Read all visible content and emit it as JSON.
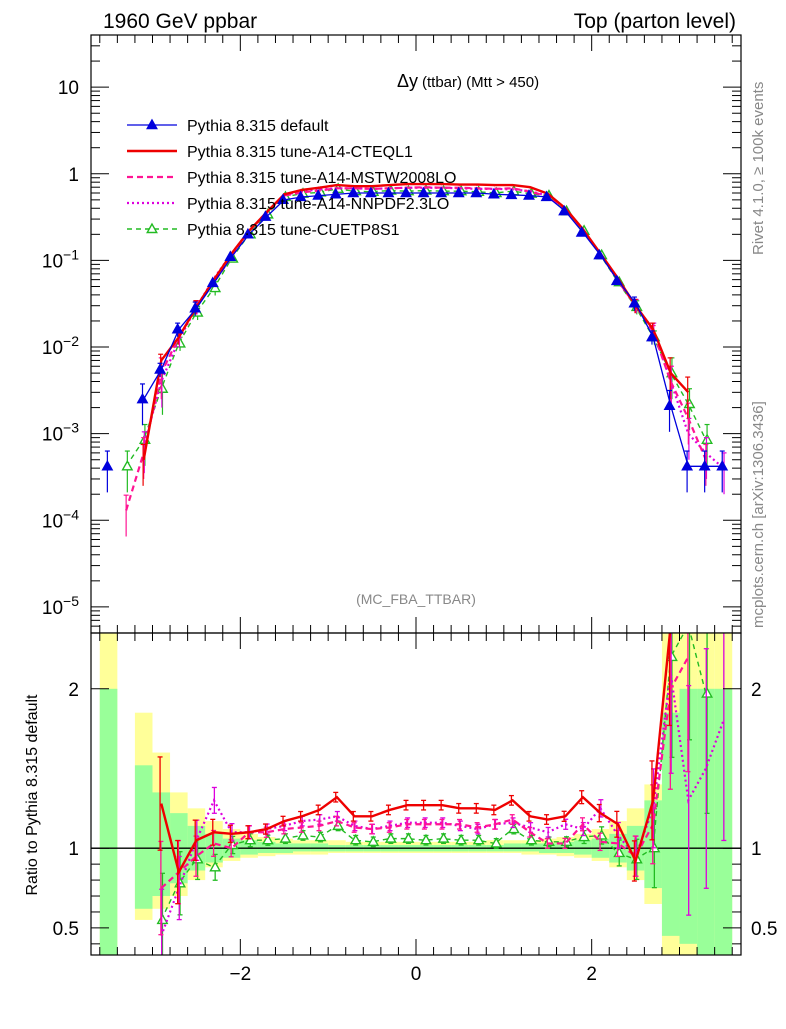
{
  "header": {
    "left": "1960 GeV ppbar",
    "right": "Top (parton level)"
  },
  "side": {
    "rivet": "Rivet 4.1.0, ≥ 100k events",
    "mcplots": "mcplots.cern.ch [arXiv:1306.3436]"
  },
  "plot": {
    "title_main": "Δy",
    "title_sub": "(ttbar) (Mtt > 450)",
    "analysis_label": "(MC_FBA_TTBAR)",
    "ratio_ylabel": "Ratio to Pythia 8.315 default"
  },
  "colors": {
    "default": "#0000dd",
    "cteql1": "#ee0000",
    "mstw": "#ff1493",
    "nnpdf": "#dd00dd",
    "cuetp8s1": "#22bb22",
    "band_yellow": "#ffff99",
    "band_green": "#99ff99"
  },
  "chart_data": [
    {
      "type": "line",
      "panel": "main",
      "xlabel": "Δy",
      "xlim": [
        -3.7,
        3.7
      ],
      "ylim": [
        5e-06,
        40
      ],
      "yscale": "log",
      "y_tick_labels": [
        "10⁻⁵",
        "10⁻⁴",
        "10⁻³",
        "10⁻²",
        "10⁻¹",
        "1",
        "10"
      ],
      "legend": [
        "Pythia 8.315 default",
        "Pythia 8.315 tune-A14-CTEQL1",
        "Pythia 8.315 tune-A14-MSTW2008LO",
        "Pythia 8.315 tune-A14-NNPDF2.3LO",
        "Pythia 8.315 tune-CUETP8S1"
      ],
      "legend_position": "top-left",
      "x": [
        -3.5,
        -3.3,
        -3.1,
        -2.9,
        -2.7,
        -2.5,
        -2.3,
        -2.1,
        -1.9,
        -1.7,
        -1.5,
        -1.3,
        -1.1,
        -0.9,
        -0.7,
        -0.5,
        -0.3,
        -0.1,
        0.1,
        0.3,
        0.5,
        0.7,
        0.9,
        1.1,
        1.3,
        1.5,
        1.7,
        1.9,
        2.1,
        2.3,
        2.5,
        2.7,
        2.9,
        3.1,
        3.3,
        3.5
      ],
      "series": [
        {
          "name": "Pythia 8.315 default",
          "marker": "filled-triangle",
          "values": [
            0.00042,
            null,
            0.0025,
            0.0055,
            0.016,
            0.028,
            0.055,
            0.11,
            0.2,
            0.32,
            0.5,
            0.54,
            0.56,
            0.58,
            0.6,
            0.6,
            0.6,
            0.6,
            0.6,
            0.6,
            0.6,
            0.6,
            0.58,
            0.57,
            0.56,
            0.54,
            0.37,
            0.21,
            0.115,
            0.058,
            0.032,
            0.013,
            0.0021,
            0.00042,
            0.00042,
            0.00042
          ]
        },
        {
          "name": "Pythia 8.315 tune-A14-CTEQL1",
          "marker": "none",
          "values": [
            null,
            null,
            0.0005,
            0.007,
            0.013,
            0.029,
            0.06,
            0.12,
            0.22,
            0.36,
            0.58,
            0.65,
            0.69,
            0.74,
            0.72,
            0.72,
            0.74,
            0.76,
            0.76,
            0.76,
            0.75,
            0.75,
            0.74,
            0.74,
            0.7,
            0.59,
            0.4,
            0.23,
            0.12,
            0.062,
            0.03,
            0.016,
            0.005,
            0.003,
            null,
            null
          ]
        },
        {
          "name": "Pythia 8.315 tune-A14-MSTW2008LO",
          "marker": "none",
          "values": [
            null,
            0.00013,
            0.0006,
            0.005,
            0.013,
            0.029,
            0.056,
            0.11,
            0.22,
            0.35,
            0.56,
            0.61,
            0.64,
            0.68,
            0.68,
            0.67,
            0.68,
            0.69,
            0.7,
            0.69,
            0.69,
            0.68,
            0.67,
            0.68,
            0.62,
            0.55,
            0.38,
            0.22,
            0.12,
            0.058,
            0.03,
            0.015,
            0.004,
            0.0015,
            0.0005,
            null
          ]
        },
        {
          "name": "Pythia 8.315 tune-A14-NNPDF2.3LO",
          "marker": "none",
          "values": [
            null,
            null,
            0.0007,
            0.004,
            0.012,
            0.029,
            0.062,
            0.12,
            0.22,
            0.36,
            0.57,
            0.63,
            0.66,
            0.68,
            0.68,
            0.67,
            0.68,
            0.69,
            0.69,
            0.69,
            0.68,
            0.67,
            0.67,
            0.66,
            0.63,
            0.56,
            0.4,
            0.22,
            0.12,
            0.058,
            0.03,
            0.016,
            0.004,
            0.001,
            0.0006,
            0.0004
          ]
        },
        {
          "name": "Pythia 8.315 tune-CUETP8S1",
          "marker": "open-triangle",
          "values": [
            null,
            0.00042,
            0.00085,
            0.0033,
            0.011,
            0.025,
            0.048,
            0.105,
            0.2,
            0.34,
            0.54,
            0.59,
            0.61,
            0.67,
            0.63,
            0.62,
            0.64,
            0.63,
            0.64,
            0.63,
            0.63,
            0.62,
            0.6,
            0.63,
            0.59,
            0.56,
            0.37,
            0.22,
            0.115,
            0.056,
            0.029,
            0.013,
            0.005,
            0.0022,
            0.00085,
            null
          ]
        }
      ]
    },
    {
      "type": "line",
      "panel": "ratio",
      "xlabel": "Δy",
      "ylabel": "Ratio to Pythia 8.315 default",
      "xlim": [
        -3.7,
        3.7
      ],
      "ylim": [
        0.33,
        2.35
      ],
      "x_ticks": [
        -2,
        0,
        2
      ],
      "x_tick_labels": [
        "−2",
        "0",
        "2"
      ],
      "y_ticks": [
        0.5,
        1,
        2
      ],
      "y_tick_labels": [
        "0.5",
        "1",
        "2"
      ],
      "x": [
        -3.5,
        -3.3,
        -3.1,
        -2.9,
        -2.7,
        -2.5,
        -2.3,
        -2.1,
        -1.9,
        -1.7,
        -1.5,
        -1.3,
        -1.1,
        -0.9,
        -0.7,
        -0.5,
        -0.3,
        -0.1,
        0.1,
        0.3,
        0.5,
        0.7,
        0.9,
        1.1,
        1.3,
        1.5,
        1.7,
        1.9,
        2.1,
        2.3,
        2.5,
        2.7,
        2.9,
        3.1,
        3.3,
        3.5
      ],
      "band_yellow": [
        [
          0.33,
          2.35
        ],
        [
          0.33,
          0.33
        ],
        [
          0.55,
          1.85
        ],
        [
          0.62,
          1.6
        ],
        [
          0.7,
          1.35
        ],
        [
          0.8,
          1.25
        ],
        [
          0.88,
          1.17
        ],
        [
          0.92,
          1.12
        ],
        [
          0.94,
          1.09
        ],
        [
          0.95,
          1.07
        ],
        [
          0.96,
          1.06
        ],
        [
          0.96,
          1.05
        ],
        [
          0.96,
          1.05
        ],
        [
          0.97,
          1.05
        ],
        [
          0.97,
          1.04
        ],
        [
          0.97,
          1.04
        ],
        [
          0.97,
          1.04
        ],
        [
          0.97,
          1.04
        ],
        [
          0.97,
          1.04
        ],
        [
          0.97,
          1.04
        ],
        [
          0.97,
          1.04
        ],
        [
          0.97,
          1.04
        ],
        [
          0.97,
          1.05
        ],
        [
          0.97,
          1.05
        ],
        [
          0.96,
          1.05
        ],
        [
          0.96,
          1.06
        ],
        [
          0.95,
          1.07
        ],
        [
          0.94,
          1.09
        ],
        [
          0.92,
          1.12
        ],
        [
          0.88,
          1.17
        ],
        [
          0.8,
          1.25
        ],
        [
          0.65,
          1.4
        ],
        [
          0.33,
          2.35
        ],
        [
          0.33,
          2.35
        ],
        [
          0.33,
          2.35
        ],
        [
          0.33,
          2.35
        ]
      ],
      "band_green": [
        [
          0.33,
          2.0
        ],
        [
          0.33,
          0.33
        ],
        [
          0.62,
          1.52
        ],
        [
          0.7,
          1.35
        ],
        [
          0.78,
          1.22
        ],
        [
          0.86,
          1.14
        ],
        [
          0.91,
          1.09
        ],
        [
          0.94,
          1.06
        ],
        [
          0.96,
          1.05
        ],
        [
          0.97,
          1.04
        ],
        [
          0.97,
          1.03
        ],
        [
          0.98,
          1.03
        ],
        [
          0.98,
          1.03
        ],
        [
          0.98,
          1.02
        ],
        [
          0.98,
          1.02
        ],
        [
          0.98,
          1.02
        ],
        [
          0.98,
          1.02
        ],
        [
          0.98,
          1.02
        ],
        [
          0.98,
          1.02
        ],
        [
          0.98,
          1.02
        ],
        [
          0.98,
          1.02
        ],
        [
          0.98,
          1.02
        ],
        [
          0.98,
          1.02
        ],
        [
          0.98,
          1.03
        ],
        [
          0.98,
          1.03
        ],
        [
          0.97,
          1.03
        ],
        [
          0.97,
          1.04
        ],
        [
          0.96,
          1.05
        ],
        [
          0.94,
          1.06
        ],
        [
          0.91,
          1.09
        ],
        [
          0.86,
          1.14
        ],
        [
          0.75,
          1.3
        ],
        [
          0.45,
          1.85
        ],
        [
          0.4,
          2.0
        ],
        [
          0.33,
          2.0
        ],
        [
          0.33,
          2.0
        ]
      ],
      "series": [
        {
          "name": "Pythia 8.315 tune-A14-CTEQL1",
          "values": [
            null,
            null,
            null,
            1.28,
            0.85,
            1.05,
            1.1,
            1.09,
            1.1,
            1.12,
            1.17,
            1.2,
            1.24,
            1.32,
            1.2,
            1.2,
            1.24,
            1.27,
            1.27,
            1.27,
            1.25,
            1.25,
            1.24,
            1.3,
            1.2,
            1.18,
            1.2,
            1.32,
            1.22,
            1.15,
            0.92,
            1.3,
            2.4,
            null,
            null,
            null
          ]
        },
        {
          "name": "Pythia 8.315 tune-A14-MSTW2008LO",
          "values": [
            null,
            null,
            null,
            0.75,
            0.85,
            0.95,
            1.03,
            1.0,
            1.1,
            1.1,
            1.12,
            1.13,
            1.14,
            1.17,
            1.13,
            1.12,
            1.13,
            1.15,
            1.15,
            1.15,
            1.15,
            1.13,
            1.15,
            1.18,
            1.1,
            1.03,
            1.03,
            1.15,
            1.04,
            1.03,
            0.95,
            1.15,
            2.0,
            2.2,
            null,
            null
          ]
        },
        {
          "name": "Pythia 8.315 tune-A14-NNPDF2.3LO",
          "values": [
            null,
            null,
            null,
            0.45,
            0.75,
            1.05,
            1.3,
            1.1,
            1.1,
            1.12,
            1.14,
            1.17,
            1.18,
            1.2,
            1.14,
            1.12,
            1.14,
            1.16,
            1.16,
            1.16,
            1.14,
            1.12,
            1.15,
            1.16,
            1.13,
            1.1,
            1.15,
            1.12,
            1.25,
            1.08,
            0.95,
            1.25,
            2.1,
            1.3,
            1.5,
            1.8
          ]
        },
        {
          "name": "Pythia 8.315 tune-CUETP8S1",
          "values": [
            null,
            null,
            null,
            0.55,
            0.78,
            0.93,
            0.88,
            1.02,
            1.05,
            1.05,
            1.06,
            1.08,
            1.07,
            1.14,
            1.05,
            1.04,
            1.06,
            1.06,
            1.05,
            1.06,
            1.05,
            1.05,
            1.03,
            1.12,
            1.05,
            1.04,
            1.04,
            1.07,
            1.08,
            0.97,
            0.93,
            1.0,
            2.2,
            2.4,
            1.97,
            null
          ]
        }
      ]
    }
  ]
}
